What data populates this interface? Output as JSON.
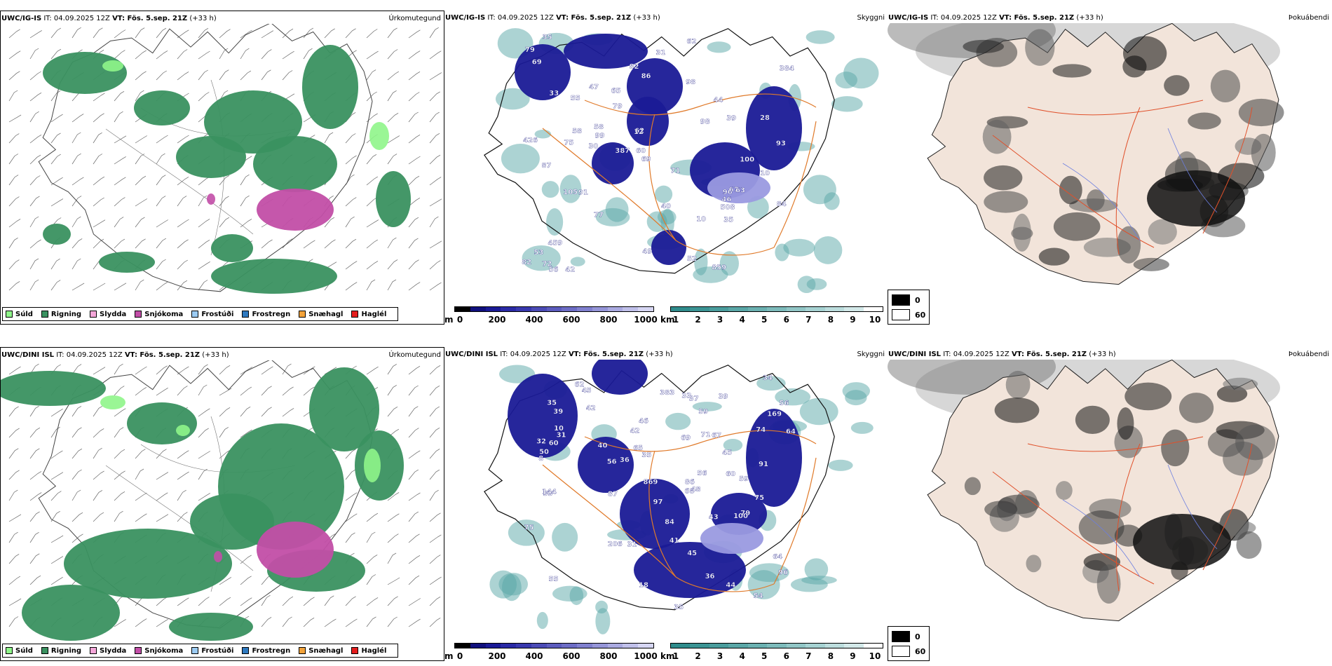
{
  "rows": [
    {
      "precip": {
        "model": "UWC/IG-IS",
        "it": "IT: 04.09.2025 12Z",
        "vt": "VT: Fös. 5.sep. 21Z",
        "lead": "(+33 h)",
        "title": "Úrkomutegund"
      },
      "cloud": {
        "model": "UWC/IG-IS",
        "it": "IT: 04.09.2025 12Z",
        "vt": "VT: Fös. 5.sep. 21Z",
        "lead": "(+33 h)",
        "title": "Skyggni"
      },
      "fog": {
        "model": "UWC/IG-IS",
        "it": "IT: 04.09.2025 12Z",
        "vt": "VT: Fös. 5.sep. 21Z",
        "lead": "(+33 h)",
        "title": "Þokuábendi"
      },
      "labels": [
        "99",
        "72",
        "96",
        "98",
        "105",
        "42",
        "31",
        "71",
        "79",
        "58",
        "62",
        "52",
        "30",
        "98",
        "65",
        "67",
        "53",
        "100",
        "55",
        "35",
        "82",
        "63",
        "56",
        "62",
        "384",
        "86",
        "91",
        "79",
        "49",
        "33",
        "77",
        "69",
        "60",
        "87",
        "39",
        "40",
        "35",
        "508",
        "44",
        "10",
        "859",
        "387",
        "459",
        "426",
        "46",
        "12",
        "93",
        "47",
        "84",
        "28",
        "58",
        "69",
        "75",
        "10",
        "82"
      ]
    },
    {
      "precip": {
        "model": "UWC/DINI ISL",
        "it": "IT: 04.09.2025 12Z",
        "vt": "VT: Fös. 5.sep. 21Z",
        "lead": "(+33 h)",
        "title": "Úrkomutegund"
      },
      "cloud": {
        "model": "UWC/DINI ISL",
        "it": "IT: 04.09.2025 12Z",
        "vt": "VT: Fös. 5.sep. 21Z",
        "lead": "(+33 h)",
        "title": "Skyggni"
      },
      "fog": {
        "model": "UWC/DINI ISL",
        "it": "IT: 04.09.2025 12Z",
        "vt": "VT: Fös. 5.sep. 21Z",
        "lead": "(+33 h)",
        "title": "Þokuábendi"
      },
      "labels": [
        "97",
        "79",
        "60",
        "53",
        "36",
        "62",
        "74",
        "34",
        "50",
        "45",
        "44",
        "43",
        "35",
        "40",
        "46",
        "91",
        "100",
        "86",
        "75",
        "37",
        "41",
        "39",
        "39",
        "69",
        "59",
        "33",
        "144",
        "18",
        "42",
        "206",
        "64",
        "54",
        "71",
        "56",
        "87",
        "869",
        "169",
        "60",
        "75",
        "8",
        "84",
        "59",
        "65",
        "96",
        "45",
        "56",
        "67",
        "68",
        "55",
        "10",
        "35",
        "35",
        "383",
        "56",
        "48",
        "42",
        "31",
        "32",
        "45",
        "31",
        "36",
        "64"
      ]
    }
  ],
  "legend_precip": [
    {
      "label": "Súld",
      "color": "#8ff58a"
    },
    {
      "label": "Rigning",
      "color": "#3a9160"
    },
    {
      "label": "Slydda",
      "color": "#f4a6d8"
    },
    {
      "label": "Snjókoma",
      "color": "#c24ea7"
    },
    {
      "label": "Frostúði",
      "color": "#9ccbf2"
    },
    {
      "label": "Frostregn",
      "color": "#2e79bf"
    },
    {
      "label": "Snæhagl",
      "color": "#f2a23a"
    },
    {
      "label": "Haglél",
      "color": "#e41d1d"
    }
  ],
  "cloudbase_scale": {
    "unit": "m",
    "ticks": [
      "0",
      "200",
      "400",
      "600",
      "800",
      "1000"
    ],
    "colors": [
      "#000000",
      "#10107d",
      "#1a1a96",
      "#2a2aa6",
      "#3838ae",
      "#4b4bb6",
      "#5c5cbe",
      "#6d6dc6",
      "#8080cf",
      "#9595d8",
      "#aaaae1",
      "#c0c0ea",
      "#d6d6f3"
    ]
  },
  "visibility_scale": {
    "unit": "km",
    "ticks": [
      "1",
      "2",
      "3",
      "4",
      "5",
      "6",
      "7",
      "8",
      "9",
      "10"
    ],
    "colors": [
      "#2f8c8c",
      "#3b9494",
      "#4a9d9d",
      "#5aa7a7",
      "#6bb1b1",
      "#7dbbbb",
      "#91c6c6",
      "#a6d2d2",
      "#bcdddd",
      "#d3e9e9",
      "#ffffff"
    ]
  },
  "fog_key": {
    "dark_label": "0",
    "light_label": "60"
  },
  "colors": {
    "rain": "#3a9160",
    "drizzle": "#8ff58a",
    "snow": "#c24ea7",
    "sleet": "#f4a6d8",
    "cloud_blue": "#1a1a96",
    "cloud_light": "#9a9ae0",
    "vis_teal": "#5aa7a7",
    "road": "#e07a2a",
    "land_fog": "#f2e4da",
    "river": "#6b7ee0"
  }
}
